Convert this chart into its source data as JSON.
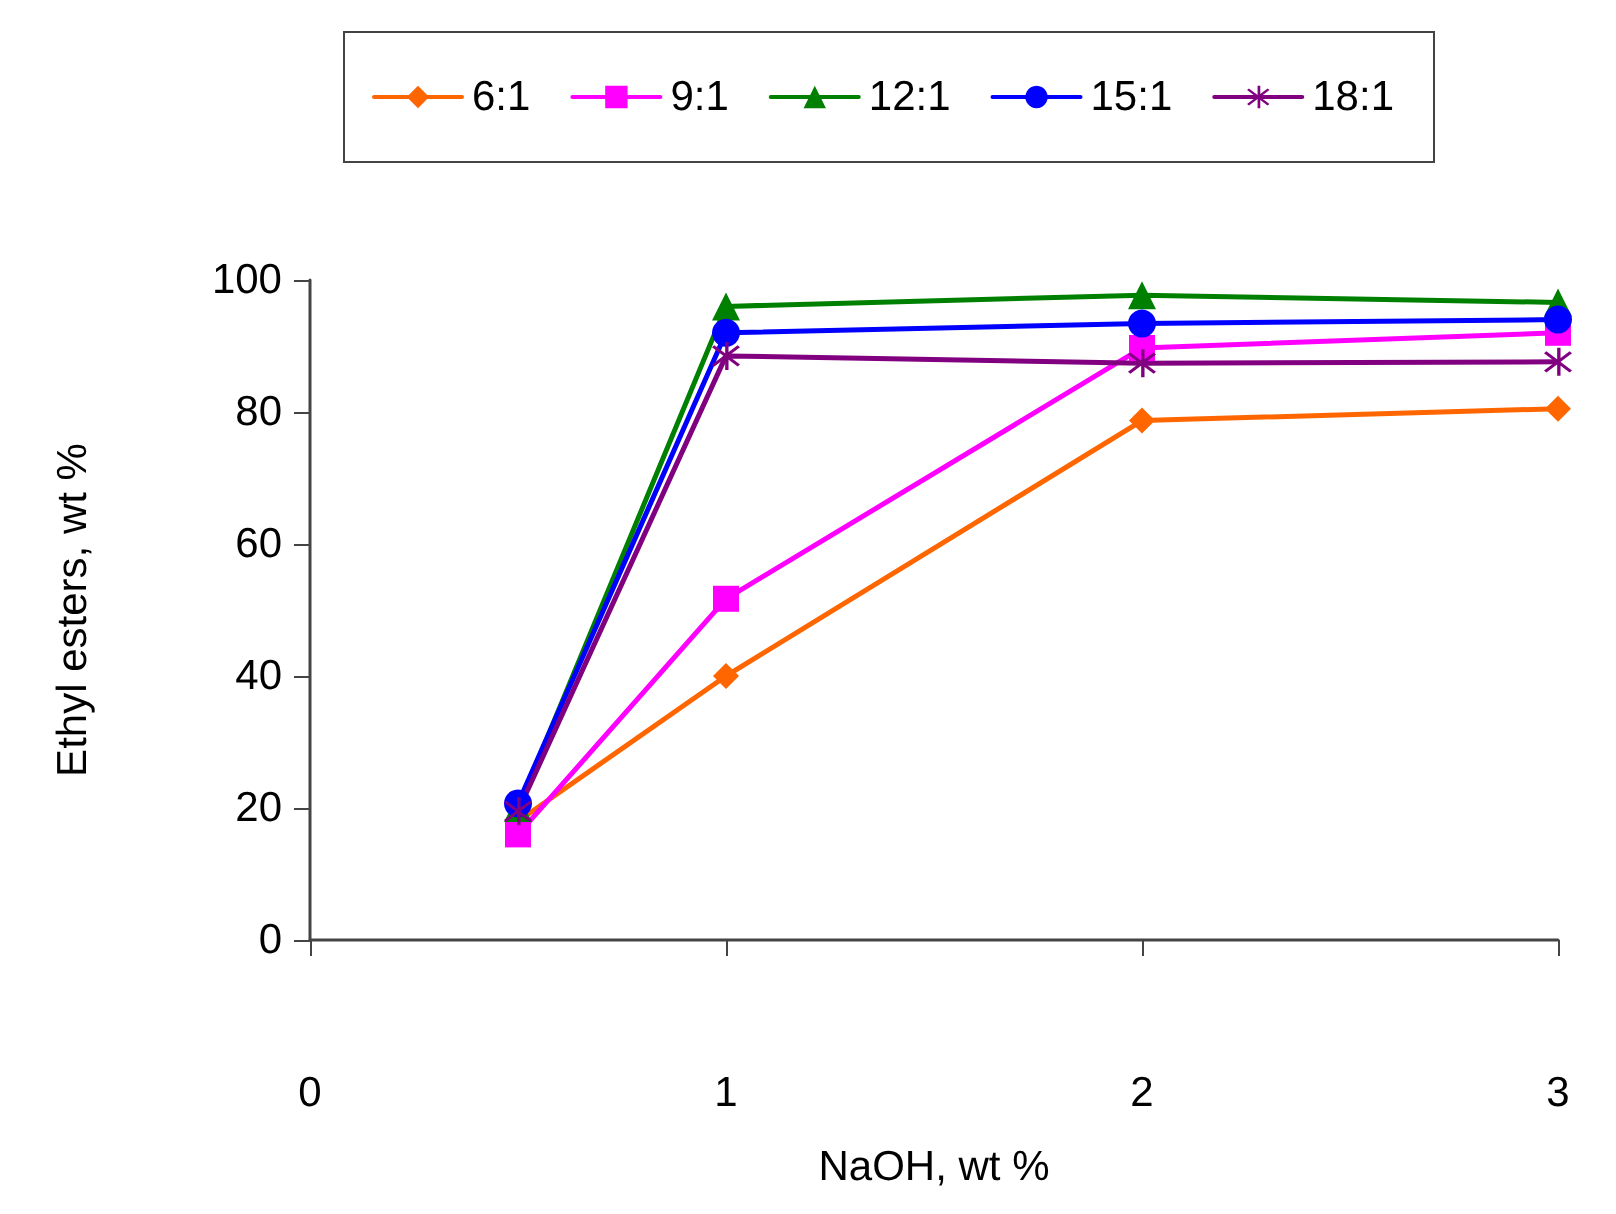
{
  "chart_data": {
    "type": "line",
    "xlabel": "NaOH, wt %",
    "ylabel": "Ethyl esters, wt %",
    "x": [
      0.5,
      1,
      2,
      3
    ],
    "xlim": [
      0,
      3
    ],
    "xticks": [
      0,
      1,
      2,
      3
    ],
    "ylim": [
      0,
      100
    ],
    "yticks": [
      0,
      20,
      40,
      60,
      80,
      100
    ],
    "grid": false,
    "legend": "top",
    "line_style": "solid",
    "series": [
      {
        "name": "6:1",
        "color": "#ff6600",
        "marker": "diamond",
        "values": [
          18,
          40,
          78.7,
          80.5
        ]
      },
      {
        "name": "9:1",
        "color": "#ff00ff",
        "marker": "square",
        "values": [
          16,
          51.7,
          89.7,
          92
        ]
      },
      {
        "name": "12:1",
        "color": "#008000",
        "marker": "triangle",
        "values": [
          20,
          96,
          97.7,
          96.6
        ]
      },
      {
        "name": "15:1",
        "color": "#0000ff",
        "marker": "circle",
        "values": [
          20.7,
          92,
          93.4,
          94
        ]
      },
      {
        "name": "18:1",
        "color": "#800080",
        "marker": "cross",
        "values": [
          19.5,
          88.5,
          87.4,
          87.6
        ]
      }
    ]
  }
}
